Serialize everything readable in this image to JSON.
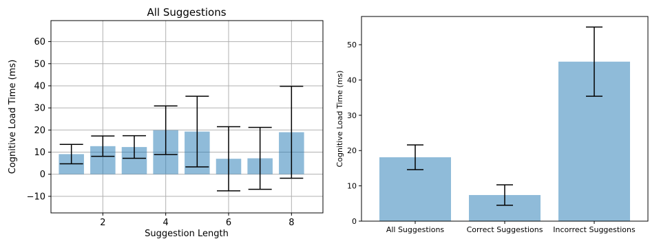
{
  "chart_data": [
    {
      "type": "bar",
      "title": "All Suggestions",
      "xlabel": "Suggestion Length",
      "ylabel": "Cognitive Load Time (ms)",
      "x": [
        1,
        2,
        3,
        4,
        5,
        6,
        7,
        8
      ],
      "values": [
        9.1,
        12.7,
        12.3,
        19.9,
        19.3,
        7.0,
        7.2,
        19.0
      ],
      "errors": [
        4.4,
        4.6,
        5.1,
        11.0,
        16.0,
        14.5,
        14.0,
        20.8
      ],
      "xticks": [
        "2",
        "4",
        "6",
        "8"
      ],
      "xtick_values": [
        2,
        4,
        6,
        8
      ],
      "yticks": [
        "−10",
        "0",
        "10",
        "20",
        "30",
        "40",
        "50",
        "60"
      ],
      "ytick_values": [
        -10,
        0,
        10,
        20,
        30,
        40,
        50,
        60
      ],
      "xlim": [
        0.35,
        9.0
      ],
      "ylim": [
        -17.5,
        69.5
      ],
      "grid": true,
      "bar_color": "#1f77b4",
      "bar_alpha": 0.5
    },
    {
      "type": "bar",
      "title": "",
      "xlabel": "",
      "ylabel": "Cognitive Load Time (ms)",
      "categories": [
        "All Suggestions",
        "Correct Suggestions",
        "Incorrect Suggestions"
      ],
      "values": [
        18.1,
        7.4,
        45.2
      ],
      "errors": [
        3.5,
        2.9,
        9.8
      ],
      "yticks": [
        "0",
        "10",
        "20",
        "30",
        "40",
        "50"
      ],
      "ytick_values": [
        0,
        10,
        20,
        30,
        40,
        50
      ],
      "ylim": [
        0,
        58
      ],
      "grid": false,
      "bar_color": "#1f77b4",
      "bar_alpha": 0.5
    }
  ]
}
